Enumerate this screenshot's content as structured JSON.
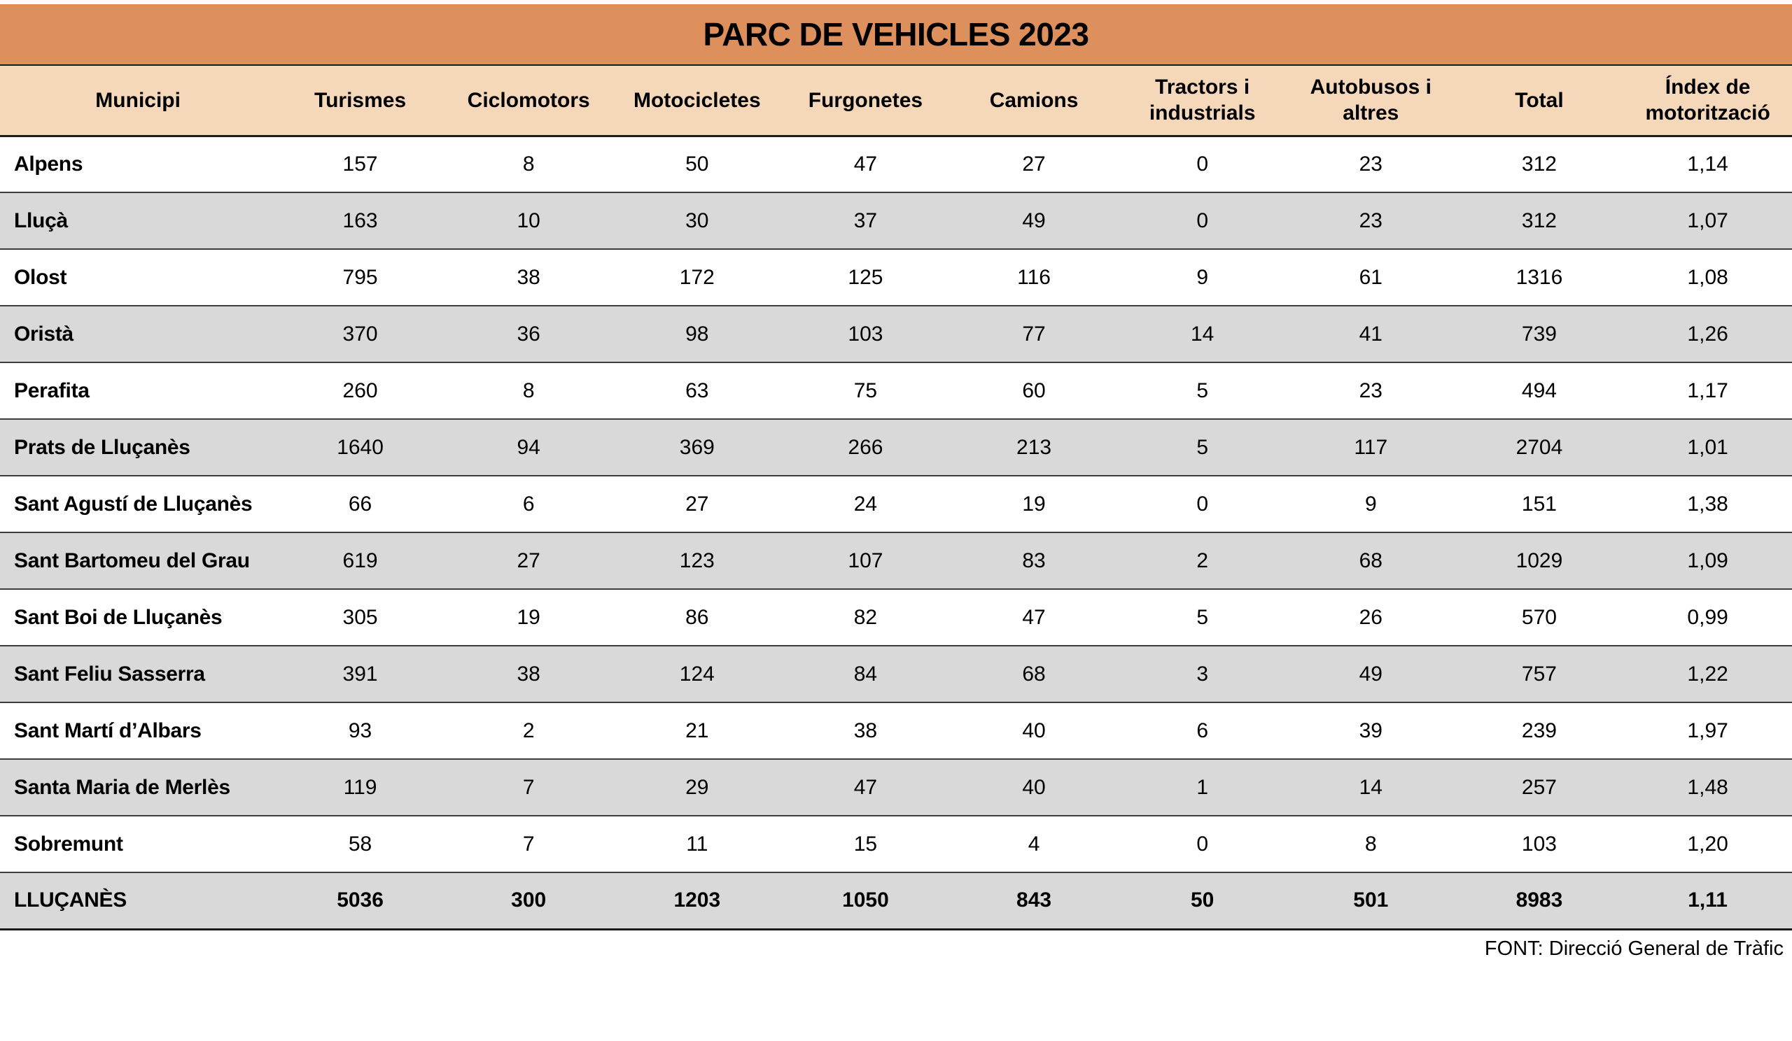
{
  "title": "PARC DE VEHICLES 2023",
  "footer": {
    "source_note": "FONT: Direcció General de Tràfic"
  },
  "colors": {
    "title_bg": "#DD905C",
    "header_bg": "#F5D7B9",
    "stripe_bg": "#D9D9D9",
    "row_line": "#3d3d3d",
    "strong_line": "#1b1b1b"
  },
  "chart_data": {
    "type": "table",
    "title": "PARC DE VEHICLES 2023",
    "columns": [
      "Municipi",
      "Turismes",
      "Ciclomotors",
      "Motocicletes",
      "Furgonetes",
      "Camions",
      "Tractors i industrials",
      "Autobusos i altres",
      "Total",
      "Índex de motorització"
    ],
    "rows": [
      [
        "Alpens",
        "157",
        "8",
        "50",
        "47",
        "27",
        "0",
        "23",
        "312",
        "1,14"
      ],
      [
        "Lluçà",
        "163",
        "10",
        "30",
        "37",
        "49",
        "0",
        "23",
        "312",
        "1,07"
      ],
      [
        "Olost",
        "795",
        "38",
        "172",
        "125",
        "116",
        "9",
        "61",
        "1316",
        "1,08"
      ],
      [
        "Oristà",
        "370",
        "36",
        "98",
        "103",
        "77",
        "14",
        "41",
        "739",
        "1,26"
      ],
      [
        "Perafita",
        "260",
        "8",
        "63",
        "75",
        "60",
        "5",
        "23",
        "494",
        "1,17"
      ],
      [
        "Prats de Lluçanès",
        "1640",
        "94",
        "369",
        "266",
        "213",
        "5",
        "117",
        "2704",
        "1,01"
      ],
      [
        "Sant Agustí de Lluçanès",
        "66",
        "6",
        "27",
        "24",
        "19",
        "0",
        "9",
        "151",
        "1,38"
      ],
      [
        "Sant Bartomeu del Grau",
        "619",
        "27",
        "123",
        "107",
        "83",
        "2",
        "68",
        "1029",
        "1,09"
      ],
      [
        "Sant Boi de Lluçanès",
        "305",
        "19",
        "86",
        "82",
        "47",
        "5",
        "26",
        "570",
        "0,99"
      ],
      [
        "Sant Feliu Sasserra",
        "391",
        "38",
        "124",
        "84",
        "68",
        "3",
        "49",
        "757",
        "1,22"
      ],
      [
        "Sant Martí d’Albars",
        "93",
        "2",
        "21",
        "38",
        "40",
        "6",
        "39",
        "239",
        "1,97"
      ],
      [
        "Santa Maria de Merlès",
        "119",
        "7",
        "29",
        "47",
        "40",
        "1",
        "14",
        "257",
        "1,48"
      ],
      [
        "Sobremunt",
        "58",
        "7",
        "11",
        "15",
        "4",
        "0",
        "8",
        "103",
        "1,20"
      ]
    ],
    "total_row": [
      "LLUÇANÈS",
      "5036",
      "300",
      "1203",
      "1050",
      "843",
      "50",
      "501",
      "8983",
      "1,11"
    ],
    "layout": {
      "grid": "horizontal row separators only",
      "stripe_pattern": "alternating white / grey starting white",
      "source_note_position": "bottom-right"
    }
  }
}
